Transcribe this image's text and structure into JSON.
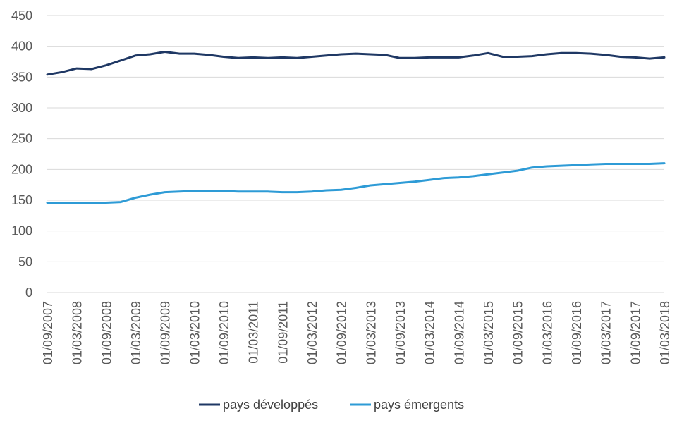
{
  "chart_data": {
    "type": "line",
    "title": "",
    "xlabel": "",
    "ylabel": "",
    "ylim": [
      0,
      450
    ],
    "yticks": [
      0,
      50,
      100,
      150,
      200,
      250,
      300,
      350,
      400,
      450
    ],
    "grid": true,
    "legend_position": "bottom",
    "x": [
      "01/09/2007",
      "01/12/2007",
      "01/03/2008",
      "01/06/2008",
      "01/09/2008",
      "01/12/2008",
      "01/03/2009",
      "01/06/2009",
      "01/09/2009",
      "01/12/2009",
      "01/03/2010",
      "01/06/2010",
      "01/09/2010",
      "01/12/2010",
      "01/03/2011",
      "01/06/2011",
      "01/09/2011",
      "01/12/2011",
      "01/03/2012",
      "01/06/2012",
      "01/09/2012",
      "01/12/2012",
      "01/03/2013",
      "01/06/2013",
      "01/09/2013",
      "01/12/2013",
      "01/03/2014",
      "01/06/2014",
      "01/09/2014",
      "01/12/2014",
      "01/03/2015",
      "01/06/2015",
      "01/09/2015",
      "01/12/2015",
      "01/03/2016",
      "01/06/2016",
      "01/09/2016",
      "01/12/2016",
      "01/03/2017",
      "01/06/2017",
      "01/09/2017",
      "01/12/2017",
      "01/03/2018"
    ],
    "xtick_labels": [
      "01/09/2007",
      "01/03/2008",
      "01/09/2008",
      "01/03/2009",
      "01/09/2009",
      "01/03/2010",
      "01/09/2010",
      "01/03/2011",
      "01/09/2011",
      "01/03/2012",
      "01/09/2012",
      "01/03/2013",
      "01/09/2013",
      "01/03/2014",
      "01/09/2014",
      "01/03/2015",
      "01/09/2015",
      "01/03/2016",
      "01/09/2016",
      "01/03/2017",
      "01/09/2017",
      "01/03/2018"
    ],
    "series": [
      {
        "name": "pays développés",
        "color": "#1f3864",
        "values": [
          354,
          358,
          364,
          363,
          369,
          377,
          385,
          387,
          391,
          388,
          388,
          386,
          383,
          381,
          382,
          381,
          382,
          381,
          383,
          385,
          387,
          388,
          387,
          386,
          381,
          381,
          382,
          382,
          382,
          385,
          389,
          383,
          383,
          384,
          387,
          389,
          389,
          388,
          386,
          383,
          382,
          380,
          382
        ]
      },
      {
        "name": "pays émergents",
        "color": "#2e9bd6",
        "values": [
          146,
          145,
          146,
          146,
          146,
          147,
          154,
          159,
          163,
          164,
          165,
          165,
          165,
          164,
          164,
          164,
          163,
          163,
          164,
          166,
          167,
          170,
          174,
          176,
          178,
          180,
          183,
          186,
          187,
          189,
          192,
          195,
          198,
          203,
          205,
          206,
          207,
          208,
          209,
          209,
          209,
          209,
          210
        ]
      }
    ]
  }
}
